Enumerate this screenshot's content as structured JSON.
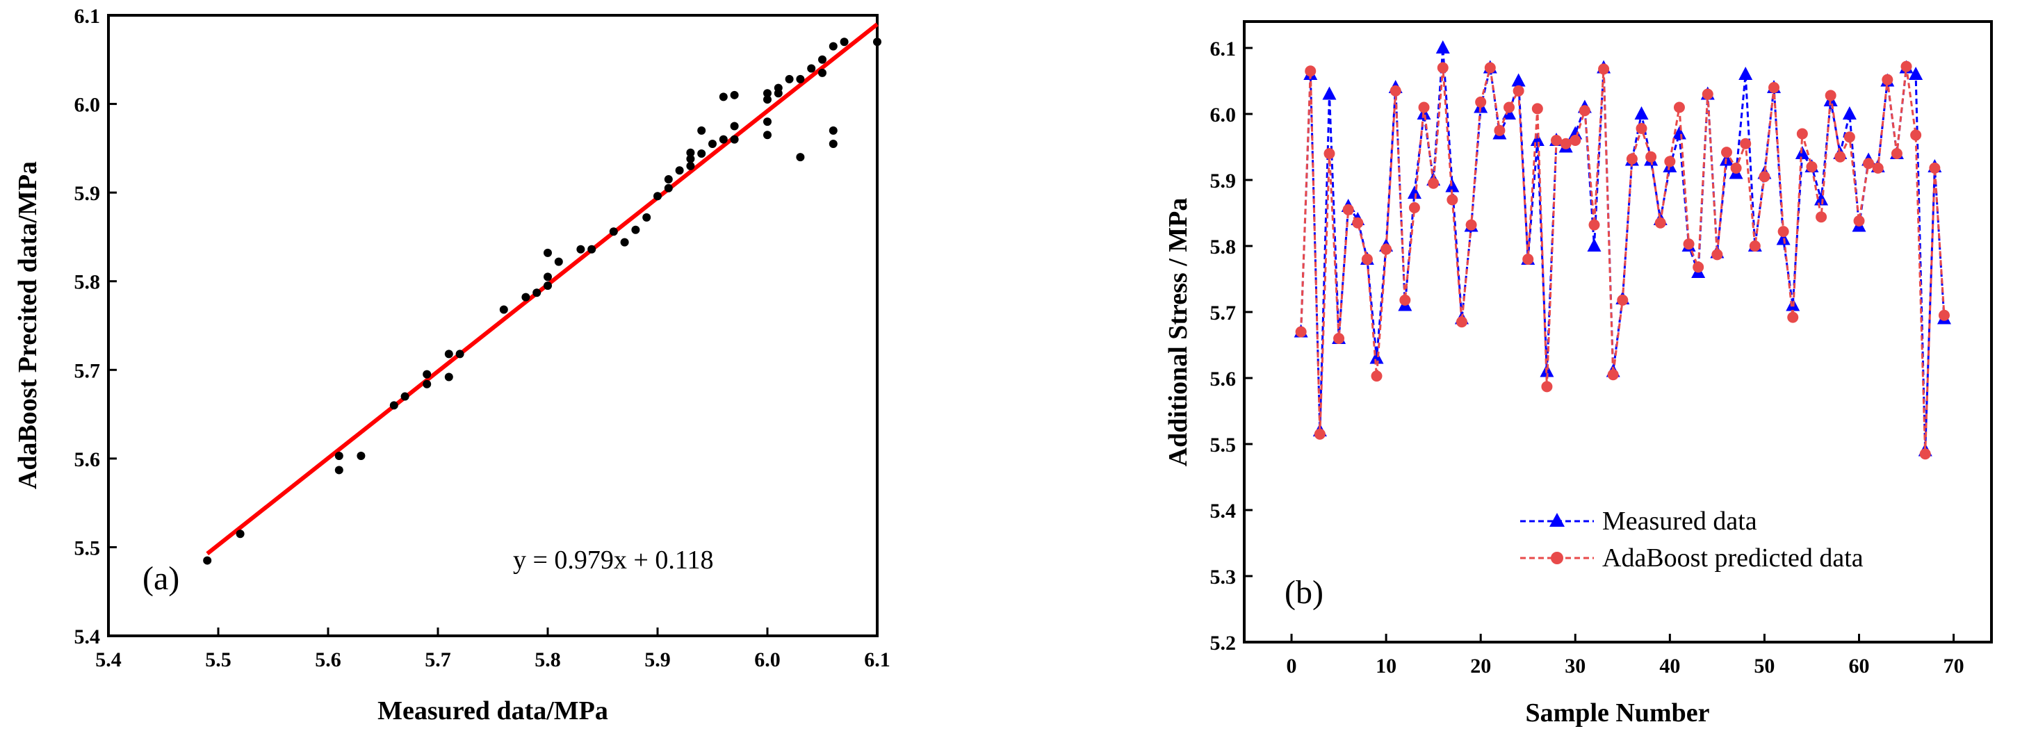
{
  "chart_data": [
    {
      "id": "a",
      "type": "scatter",
      "panel_label": "(a)",
      "xlabel": "Measured data/MPa",
      "ylabel": "AdaBoost Precited data/MPa",
      "xlim": [
        5.4,
        6.1
      ],
      "ylim": [
        5.4,
        6.1
      ],
      "xticks": [
        "5.4",
        "5.5",
        "5.6",
        "5.7",
        "5.8",
        "5.9",
        "6.0",
        "6.1"
      ],
      "yticks": [
        "5.4",
        "5.5",
        "5.6",
        "5.7",
        "5.8",
        "5.9",
        "6.0",
        "6.1"
      ],
      "grid": false,
      "legend": "none",
      "fit_equation": "y = 0.979x + 0.118",
      "fit_line": {
        "slope": 0.979,
        "intercept": 0.118,
        "x_range": [
          5.49,
          6.1
        ],
        "color": "#ff0000"
      },
      "point_color": "#000000",
      "points": [
        [
          5.49,
          5.485
        ],
        [
          5.52,
          5.515
        ],
        [
          5.61,
          5.587
        ],
        [
          5.61,
          5.603
        ],
        [
          5.63,
          5.603
        ],
        [
          5.66,
          5.66
        ],
        [
          5.67,
          5.67
        ],
        [
          5.69,
          5.684
        ],
        [
          5.69,
          5.695
        ],
        [
          5.71,
          5.692
        ],
        [
          5.71,
          5.718
        ],
        [
          5.72,
          5.718
        ],
        [
          5.76,
          5.768
        ],
        [
          5.78,
          5.782
        ],
        [
          5.79,
          5.787
        ],
        [
          5.8,
          5.795
        ],
        [
          5.8,
          5.805
        ],
        [
          5.8,
          5.832
        ],
        [
          5.81,
          5.822
        ],
        [
          5.83,
          5.836
        ],
        [
          5.84,
          5.836
        ],
        [
          5.86,
          5.856
        ],
        [
          5.87,
          5.844
        ],
        [
          5.88,
          5.858
        ],
        [
          5.89,
          5.872
        ],
        [
          5.9,
          5.896
        ],
        [
          5.91,
          5.905
        ],
        [
          5.91,
          5.915
        ],
        [
          5.92,
          5.925
        ],
        [
          5.93,
          5.93
        ],
        [
          5.93,
          5.938
        ],
        [
          5.93,
          5.945
        ],
        [
          5.94,
          5.944
        ],
        [
          5.94,
          5.97
        ],
        [
          5.95,
          5.955
        ],
        [
          5.96,
          5.96
        ],
        [
          5.96,
          6.008
        ],
        [
          5.97,
          5.96
        ],
        [
          5.97,
          5.975
        ],
        [
          5.97,
          6.01
        ],
        [
          6.0,
          5.965
        ],
        [
          6.0,
          5.98
        ],
        [
          6.0,
          6.005
        ],
        [
          6.0,
          6.012
        ],
        [
          6.01,
          6.012
        ],
        [
          6.01,
          6.018
        ],
        [
          6.02,
          6.028
        ],
        [
          6.03,
          5.94
        ],
        [
          6.03,
          6.028
        ],
        [
          6.04,
          6.04
        ],
        [
          6.05,
          6.035
        ],
        [
          6.05,
          6.05
        ],
        [
          6.06,
          5.955
        ],
        [
          6.06,
          5.97
        ],
        [
          6.06,
          6.065
        ],
        [
          6.07,
          6.07
        ],
        [
          6.1,
          6.07
        ]
      ]
    },
    {
      "id": "b",
      "type": "line",
      "panel_label": "(b)",
      "xlabel": "Sample Number",
      "ylabel": "Additional Stress / MPa",
      "xlim": [
        -5,
        74
      ],
      "ylim": [
        5.2,
        6.14
      ],
      "xticks": [
        "0",
        "10",
        "20",
        "30",
        "40",
        "50",
        "60",
        "70"
      ],
      "yticks": [
        "5.2",
        "5.3",
        "5.4",
        "5.5",
        "5.6",
        "5.7",
        "5.8",
        "5.9",
        "6.0",
        "6.1"
      ],
      "grid": false,
      "legend": "lower-center",
      "x": [
        1,
        2,
        3,
        4,
        5,
        6,
        7,
        8,
        9,
        10,
        11,
        12,
        13,
        14,
        15,
        16,
        17,
        18,
        19,
        20,
        21,
        22,
        23,
        24,
        25,
        26,
        27,
        28,
        29,
        30,
        31,
        32,
        33,
        34,
        35,
        36,
        37,
        38,
        39,
        40,
        41,
        42,
        43,
        44,
        45,
        46,
        47,
        48,
        49,
        50,
        51,
        52,
        53,
        54,
        55,
        56,
        57,
        58,
        59,
        60,
        61,
        62,
        63,
        64,
        65,
        66,
        67,
        68,
        69
      ],
      "series": [
        {
          "name": "Measured data",
          "color": "#0000ff",
          "marker": "triangle",
          "values": [
            5.67,
            6.06,
            5.52,
            6.03,
            5.66,
            5.86,
            5.84,
            5.78,
            5.63,
            5.8,
            6.04,
            5.71,
            5.88,
            6.0,
            5.9,
            6.1,
            5.89,
            5.69,
            5.83,
            6.01,
            6.07,
            5.97,
            6.0,
            6.05,
            5.78,
            5.96,
            5.61,
            5.96,
            5.95,
            5.97,
            6.01,
            5.8,
            6.07,
            5.61,
            5.72,
            5.93,
            6.0,
            5.93,
            5.84,
            5.92,
            5.97,
            5.8,
            5.76,
            6.03,
            5.79,
            5.93,
            5.91,
            6.06,
            5.8,
            5.91,
            6.04,
            5.81,
            5.71,
            5.94,
            5.92,
            5.87,
            6.02,
            5.94,
            6.0,
            5.83,
            5.93,
            5.92,
            6.05,
            5.94,
            6.07,
            6.06,
            5.49,
            5.92,
            5.69
          ]
        },
        {
          "name": "AdaBoost predicted data",
          "color": "#e84a4a",
          "marker": "circle",
          "values": [
            5.67,
            6.065,
            5.515,
            5.94,
            5.66,
            5.855,
            5.835,
            5.78,
            5.603,
            5.795,
            6.035,
            5.718,
            5.858,
            6.01,
            5.895,
            6.07,
            5.87,
            5.685,
            5.832,
            6.018,
            6.07,
            5.975,
            6.01,
            6.035,
            5.78,
            6.008,
            5.587,
            5.96,
            5.955,
            5.96,
            6.005,
            5.832,
            6.068,
            5.605,
            5.718,
            5.932,
            5.978,
            5.935,
            5.835,
            5.928,
            6.01,
            5.803,
            5.768,
            6.03,
            5.787,
            5.942,
            5.918,
            5.955,
            5.8,
            5.905,
            6.04,
            5.822,
            5.692,
            5.97,
            5.92,
            5.844,
            6.028,
            5.935,
            5.965,
            5.838,
            5.925,
            5.918,
            6.052,
            5.94,
            6.072,
            5.968,
            5.485,
            5.918,
            5.695
          ]
        }
      ]
    }
  ]
}
